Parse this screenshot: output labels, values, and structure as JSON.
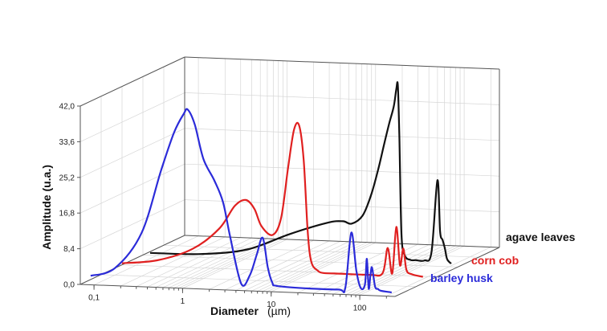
{
  "chart_data": {
    "type": "line",
    "style": "3d-waterfall",
    "xlabel": "Diameter",
    "xlabel_unit": "(µm)",
    "ylabel": "Amplitude (u.a.)",
    "x_scale": "log",
    "x_ticks": [
      "0,1",
      "1",
      "10",
      "100"
    ],
    "x_tick_values": [
      0.1,
      1,
      10,
      100
    ],
    "y_ticks": [
      "0,0",
      "8,4",
      "16,8",
      "25,2",
      "33,6",
      "42,0"
    ],
    "y_tick_values": [
      0,
      8.4,
      16.8,
      25.2,
      33.6,
      42.0
    ],
    "ylim": [
      0,
      42
    ],
    "xlim": [
      0.07,
      250
    ],
    "grid": true,
    "series": [
      {
        "name": "barley husk",
        "color": "#2b2bd9",
        "x": [
          0.08,
          0.15,
          0.3,
          0.5,
          0.7,
          0.9,
          1.0,
          1.2,
          1.5,
          2.0,
          2.5,
          3.0,
          4.0,
          5.0,
          6.0,
          7.0,
          8.0,
          9.0,
          10,
          20,
          50,
          60,
          70,
          80,
          90,
          100,
          105,
          110,
          115,
          120,
          130,
          140,
          150,
          200
        ],
        "y": [
          1.5,
          3.5,
          12.0,
          27.0,
          36.0,
          40.5,
          41.5,
          38.0,
          30.0,
          25.0,
          20.0,
          12.0,
          1.0,
          3.0,
          8.0,
          12.0,
          5.0,
          1.5,
          0.8,
          0.5,
          0.5,
          1.0,
          14.0,
          5.0,
          1.0,
          2.0,
          8.0,
          1.0,
          4.0,
          6.0,
          1.5,
          1.0,
          0.6,
          0.3
        ]
      },
      {
        "name": "corn cob",
        "color": "#e02020",
        "x": [
          0.08,
          0.2,
          0.5,
          1.0,
          1.5,
          2.0,
          2.5,
          3.0,
          4.0,
          5.0,
          6.0,
          7.0,
          8.0,
          9.0,
          10,
          11,
          13,
          15,
          20,
          50,
          70,
          80,
          90,
          100,
          110,
          120,
          130,
          150,
          200
        ],
        "y": [
          1.0,
          2.0,
          5.0,
          10.0,
          15.5,
          17.0,
          15.0,
          11.0,
          9.0,
          13.0,
          25.0,
          34.0,
          35.0,
          27.0,
          10.0,
          3.0,
          1.0,
          0.5,
          0.5,
          0.5,
          1.0,
          7.0,
          1.0,
          12.0,
          3.0,
          7.0,
          2.0,
          1.0,
          0.5
        ]
      },
      {
        "name": "agave leaves",
        "color": "#111111",
        "x": [
          0.08,
          0.3,
          1.0,
          3.0,
          8.0,
          12,
          15,
          20,
          25,
          30,
          35,
          40,
          45,
          48,
          50,
          52,
          55,
          60,
          70,
          80,
          100,
          120,
          140,
          150,
          160,
          170,
          180,
          200
        ],
        "y": [
          0.3,
          0.5,
          2.0,
          6.0,
          9.0,
          9.5,
          9.0,
          11.0,
          16.0,
          22.0,
          28.0,
          33.0,
          37.0,
          41.0,
          42.0,
          30.0,
          7.0,
          2.0,
          1.0,
          1.0,
          1.0,
          3.0,
          20.0,
          8.0,
          6.0,
          4.0,
          1.5,
          0.5
        ]
      }
    ]
  }
}
